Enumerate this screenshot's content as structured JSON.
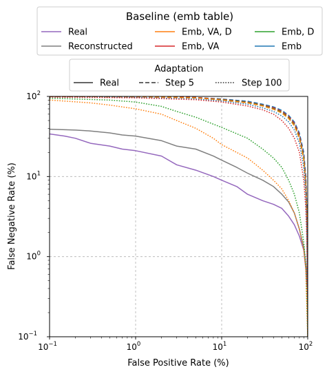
{
  "chart_data": {
    "type": "line",
    "title": "",
    "xlabel": "False Positive Rate (%)",
    "ylabel": "False Negative Rate (%)",
    "xscale": "log",
    "yscale": "log",
    "xlim": [
      0.1,
      100
    ],
    "ylim": [
      0.1,
      100
    ],
    "xticks": [
      0.1,
      1,
      10,
      100
    ],
    "yticks": [
      0.1,
      1,
      10,
      100
    ],
    "xtick_labels": [
      [
        "10",
        "−1"
      ],
      [
        "10",
        "0"
      ],
      [
        "10",
        "1"
      ],
      [
        "10",
        "2"
      ]
    ],
    "ytick_labels": [
      [
        "10",
        "−1"
      ],
      [
        "10",
        "0"
      ],
      [
        "10",
        "1"
      ],
      [
        "10",
        "2"
      ]
    ],
    "grid": "dashed, at major ticks",
    "legend1": {
      "title": "Baseline (emb table)",
      "placement": "top, outside plot",
      "entries": [
        {
          "label": "Real",
          "color": "#9467bd"
        },
        {
          "label": "Emb, VA, D",
          "color": "#ff7f0e"
        },
        {
          "label": "Emb, D",
          "color": "#2ca02c"
        },
        {
          "label": "Reconstructed",
          "color": "#7f7f7f"
        },
        {
          "label": "Emb, VA",
          "color": "#d62728"
        },
        {
          "label": "Emb",
          "color": "#1f77b4"
        }
      ]
    },
    "legend2": {
      "title": "Adaptation",
      "placement": "top, below first legend",
      "entries": [
        {
          "label": "Real",
          "style": "solid"
        },
        {
          "label": "Step 5",
          "style": "dashed"
        },
        {
          "label": "Step 100",
          "style": "dotted"
        }
      ]
    },
    "series": [
      {
        "id": "real",
        "color": "#9467bd",
        "style": "solid",
        "points": [
          [
            0.1,
            34
          ],
          [
            0.15,
            32
          ],
          [
            0.2,
            30
          ],
          [
            0.3,
            26
          ],
          [
            0.5,
            24
          ],
          [
            0.7,
            22
          ],
          [
            1,
            21
          ],
          [
            2,
            18
          ],
          [
            3,
            14
          ],
          [
            5,
            12
          ],
          [
            8,
            10
          ],
          [
            10,
            9
          ],
          [
            15,
            7.5
          ],
          [
            20,
            6
          ],
          [
            30,
            5
          ],
          [
            40,
            4.5
          ],
          [
            50,
            4
          ],
          [
            60,
            3.2
          ],
          [
            70,
            2.5
          ],
          [
            80,
            1.8
          ],
          [
            90,
            1.2
          ],
          [
            95,
            0.7
          ],
          [
            98,
            0.42
          ]
        ]
      },
      {
        "id": "reconstructed",
        "color": "#7f7f7f",
        "style": "solid",
        "points": [
          [
            0.1,
            39
          ],
          [
            0.2,
            38
          ],
          [
            0.3,
            37
          ],
          [
            0.5,
            35
          ],
          [
            0.7,
            33
          ],
          [
            1,
            32
          ],
          [
            2,
            28
          ],
          [
            3,
            24
          ],
          [
            5,
            22
          ],
          [
            8,
            18
          ],
          [
            10,
            16
          ],
          [
            15,
            13
          ],
          [
            20,
            11
          ],
          [
            30,
            9
          ],
          [
            40,
            7.5
          ],
          [
            50,
            6
          ],
          [
            60,
            4.8
          ],
          [
            70,
            3.5
          ],
          [
            80,
            2.2
          ],
          [
            90,
            1.3
          ],
          [
            95,
            0.8
          ],
          [
            99,
            0.5
          ]
        ]
      },
      {
        "id": "emb-step5",
        "color": "#1f77b4",
        "style": "dashed",
        "points": [
          [
            0.1,
            100
          ],
          [
            1,
            99
          ],
          [
            5,
            97
          ],
          [
            10,
            93
          ],
          [
            20,
            87
          ],
          [
            30,
            80
          ],
          [
            40,
            74
          ],
          [
            50,
            67
          ],
          [
            60,
            58
          ],
          [
            70,
            48
          ],
          [
            80,
            35
          ],
          [
            90,
            20
          ],
          [
            95,
            10
          ],
          [
            98,
            4
          ],
          [
            100,
            0.1
          ]
        ]
      },
      {
        "id": "emb-va-step5",
        "color": "#d62728",
        "style": "dashed",
        "points": [
          [
            0.1,
            100
          ],
          [
            1,
            99
          ],
          [
            5,
            97
          ],
          [
            10,
            92
          ],
          [
            20,
            85
          ],
          [
            30,
            78
          ],
          [
            40,
            72
          ],
          [
            50,
            65
          ],
          [
            60,
            56
          ],
          [
            70,
            46
          ],
          [
            80,
            33
          ],
          [
            90,
            18
          ],
          [
            95,
            9
          ],
          [
            98,
            3.5
          ],
          [
            100,
            0.1
          ]
        ]
      },
      {
        "id": "emb-d-step5",
        "color": "#2ca02c",
        "style": "dashed",
        "points": [
          [
            0.1,
            100
          ],
          [
            1,
            99
          ],
          [
            5,
            96
          ],
          [
            10,
            91
          ],
          [
            20,
            84
          ],
          [
            30,
            77
          ],
          [
            40,
            70
          ],
          [
            50,
            63
          ],
          [
            60,
            54
          ],
          [
            70,
            44
          ],
          [
            80,
            31
          ],
          [
            90,
            17
          ],
          [
            95,
            8
          ],
          [
            98,
            3
          ],
          [
            100,
            0.1
          ]
        ]
      },
      {
        "id": "emb-va-d-step5",
        "color": "#ff7f0e",
        "style": "dashed",
        "points": [
          [
            0.1,
            100
          ],
          [
            1,
            99
          ],
          [
            5,
            96
          ],
          [
            10,
            90
          ],
          [
            20,
            83
          ],
          [
            30,
            76
          ],
          [
            40,
            69
          ],
          [
            50,
            62
          ],
          [
            60,
            53
          ],
          [
            70,
            43
          ],
          [
            80,
            30
          ],
          [
            90,
            16
          ],
          [
            95,
            7.5
          ],
          [
            98,
            3
          ],
          [
            100,
            0.1
          ]
        ]
      },
      {
        "id": "emb-step100",
        "color": "#1f77b4",
        "style": "dotted",
        "points": [
          [
            0.1,
            99
          ],
          [
            1,
            97
          ],
          [
            5,
            93
          ],
          [
            10,
            88
          ],
          [
            20,
            80
          ],
          [
            30,
            72
          ],
          [
            40,
            65
          ],
          [
            50,
            57
          ],
          [
            60,
            48
          ],
          [
            70,
            38
          ],
          [
            80,
            26
          ],
          [
            90,
            13
          ],
          [
            95,
            6
          ],
          [
            98,
            2
          ],
          [
            100,
            0.1
          ]
        ]
      },
      {
        "id": "emb-va-step100",
        "color": "#d62728",
        "style": "dotted",
        "points": [
          [
            0.1,
            98
          ],
          [
            1,
            96
          ],
          [
            5,
            91
          ],
          [
            10,
            85
          ],
          [
            20,
            76
          ],
          [
            30,
            68
          ],
          [
            40,
            60
          ],
          [
            50,
            50
          ],
          [
            60,
            40
          ],
          [
            70,
            30
          ],
          [
            80,
            20
          ],
          [
            90,
            9
          ],
          [
            95,
            4
          ],
          [
            98,
            1.5
          ],
          [
            100,
            0.1
          ]
        ]
      },
      {
        "id": "emb-d-step100",
        "color": "#2ca02c",
        "style": "dotted",
        "points": [
          [
            0.1,
            95
          ],
          [
            0.5,
            90
          ],
          [
            1,
            85
          ],
          [
            2,
            75
          ],
          [
            3,
            65
          ],
          [
            5,
            55
          ],
          [
            8,
            45
          ],
          [
            10,
            41
          ],
          [
            20,
            30
          ],
          [
            30,
            22
          ],
          [
            40,
            17
          ],
          [
            50,
            13
          ],
          [
            60,
            9
          ],
          [
            70,
            6
          ],
          [
            80,
            3.5
          ],
          [
            90,
            1.5
          ],
          [
            95,
            0.8
          ],
          [
            100,
            0.1
          ]
        ]
      },
      {
        "id": "emb-va-d-step100",
        "color": "#ff7f0e",
        "style": "dotted",
        "points": [
          [
            0.1,
            90
          ],
          [
            0.3,
            83
          ],
          [
            0.5,
            78
          ],
          [
            1,
            70
          ],
          [
            2,
            60
          ],
          [
            3,
            50
          ],
          [
            5,
            40
          ],
          [
            8,
            30
          ],
          [
            10,
            25
          ],
          [
            20,
            17
          ],
          [
            30,
            12
          ],
          [
            40,
            9
          ],
          [
            50,
            7
          ],
          [
            60,
            5
          ],
          [
            70,
            3.5
          ],
          [
            80,
            2.2
          ],
          [
            90,
            1.2
          ],
          [
            95,
            0.7
          ],
          [
            100,
            0.1
          ]
        ]
      }
    ]
  }
}
